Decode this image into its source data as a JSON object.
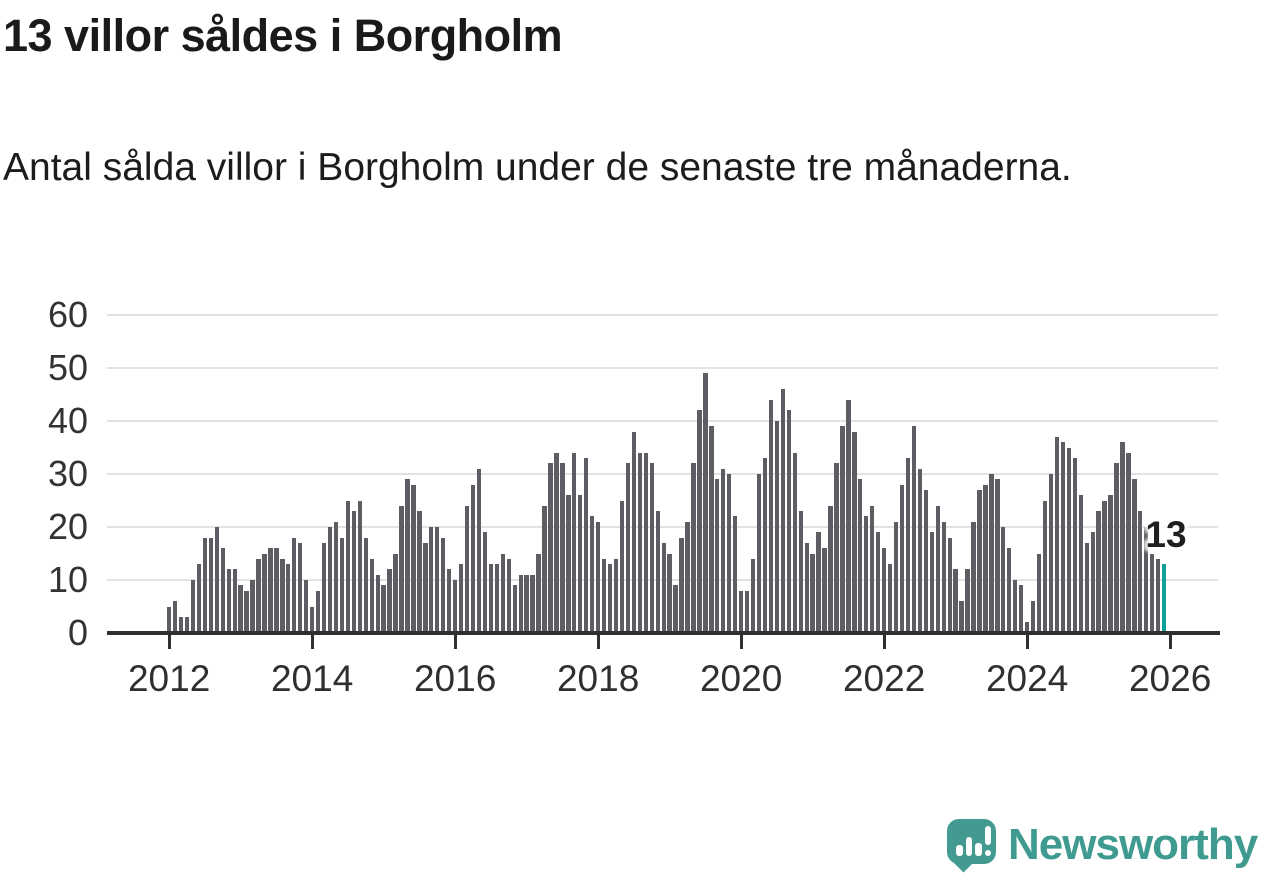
{
  "title": "13 villor såldes i Borgholm",
  "subtitle": "Antal sålda villor i Borgholm under de senaste tre månaderna.",
  "annotation": {
    "label": "13"
  },
  "branding": {
    "name": "Newsworthy",
    "icon": "bar-chart-speech-bubble-icon"
  },
  "colors": {
    "bar": "#5d5d64",
    "highlight": "#12a19a",
    "brand": "#3f9b90",
    "grid": "#e2e2e2",
    "axis": "#2f2f2f",
    "text": "#1a1a1a"
  },
  "chart_data": {
    "type": "bar",
    "title": "13 villor såldes i Borgholm",
    "subtitle": "Antal sålda villor i Borgholm under de senaste tre månaderna.",
    "x_unit": "month",
    "x_range": [
      "2012-01",
      "2025-12"
    ],
    "x_tick_labels": [
      "2012",
      "2014",
      "2016",
      "2018",
      "2020",
      "2022",
      "2024",
      "2026"
    ],
    "months_per_tick": 24,
    "y_ticks": [
      0,
      10,
      20,
      30,
      40,
      50,
      60
    ],
    "ylim": [
      0,
      63
    ],
    "grid": true,
    "legend": false,
    "ylabel": "",
    "xlabel": "",
    "values": [
      5,
      6,
      3,
      3,
      10,
      13,
      18,
      18,
      20,
      16,
      12,
      12,
      9,
      8,
      10,
      14,
      15,
      16,
      16,
      14,
      13,
      18,
      17,
      10,
      5,
      8,
      17,
      20,
      21,
      18,
      25,
      23,
      25,
      18,
      14,
      11,
      9,
      12,
      15,
      24,
      29,
      28,
      23,
      17,
      20,
      20,
      18,
      12,
      10,
      13,
      24,
      28,
      31,
      19,
      13,
      13,
      15,
      14,
      9,
      11,
      11,
      11,
      15,
      24,
      32,
      34,
      32,
      26,
      34,
      26,
      33,
      22,
      21,
      14,
      13,
      14,
      25,
      32,
      38,
      34,
      34,
      32,
      23,
      17,
      15,
      9,
      18,
      21,
      32,
      42,
      49,
      39,
      29,
      31,
      30,
      22,
      8,
      8,
      14,
      30,
      33,
      44,
      40,
      46,
      42,
      34,
      23,
      17,
      15,
      19,
      16,
      24,
      32,
      39,
      44,
      38,
      29,
      22,
      24,
      19,
      16,
      13,
      21,
      28,
      33,
      39,
      31,
      27,
      19,
      24,
      21,
      18,
      12,
      6,
      12,
      21,
      27,
      28,
      30,
      29,
      20,
      16,
      10,
      9,
      2,
      6,
      15,
      25,
      30,
      37,
      36,
      35,
      33,
      26,
      17,
      19,
      23,
      25,
      26,
      32,
      36,
      34,
      29,
      23,
      20,
      15,
      14,
      13
    ],
    "highlight": {
      "index": 167,
      "value": 13,
      "label": "13"
    }
  }
}
